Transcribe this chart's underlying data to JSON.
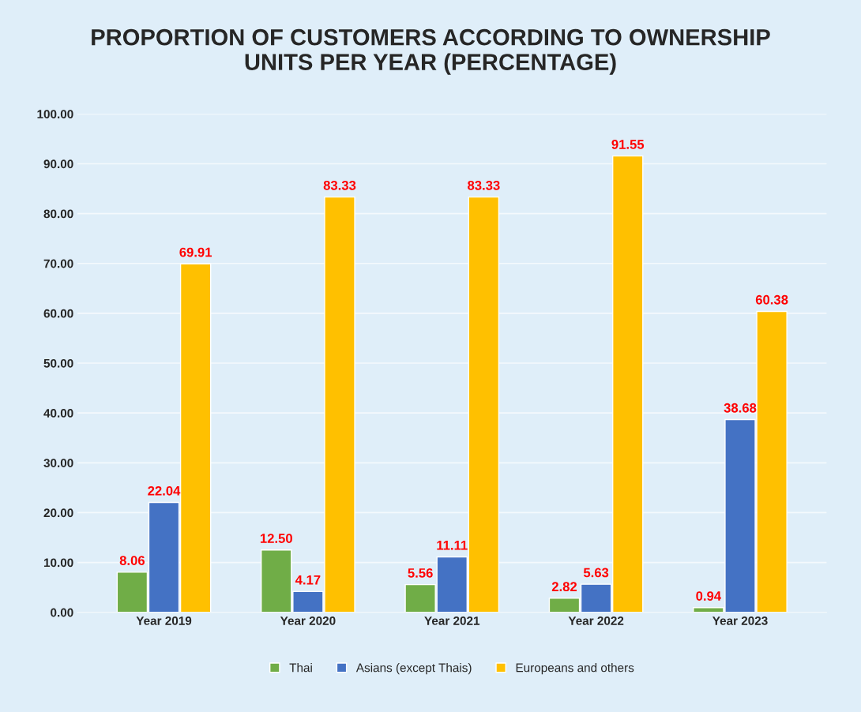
{
  "chart_data": {
    "type": "bar",
    "title": "PROPORTION OF CUSTOMERS ACCORDING TO OWNERSHIP\nUNITS PER YEAR (PERCENTAGE)",
    "categories": [
      "Year 2019",
      "Year 2020",
      "Year 2021",
      "Year 2022",
      "Year 2023"
    ],
    "series": [
      {
        "name": "Thai",
        "color": "#70ad47",
        "values": [
          8.06,
          12.5,
          5.56,
          2.82,
          0.94
        ],
        "value_labels": [
          "8.06",
          "12.50",
          "5.56",
          "2.82",
          "0.94"
        ]
      },
      {
        "name": "Asians (except Thais)",
        "color": "#4472c4",
        "values": [
          22.04,
          4.17,
          11.11,
          5.63,
          38.68
        ],
        "value_labels": [
          "22.04",
          "4.17",
          "11.11",
          "5.63",
          "38.68"
        ]
      },
      {
        "name": "Europeans and others",
        "color": "#ffc000",
        "values": [
          69.91,
          83.33,
          83.33,
          91.55,
          60.38
        ],
        "value_labels": [
          "69.91",
          "83.33",
          "83.33",
          "91.55",
          "60.38"
        ]
      }
    ],
    "ylim": [
      0,
      100
    ],
    "yticks": [
      {
        "value": 0,
        "label": "0.00"
      },
      {
        "value": 10,
        "label": "10.00"
      },
      {
        "value": 20,
        "label": "20.00"
      },
      {
        "value": 30,
        "label": "30.00"
      },
      {
        "value": 40,
        "label": "40.00"
      },
      {
        "value": 50,
        "label": "50.00"
      },
      {
        "value": 60,
        "label": "60.00"
      },
      {
        "value": 70,
        "label": "70.00"
      },
      {
        "value": 80,
        "label": "80.00"
      },
      {
        "value": 90,
        "label": "90.00"
      },
      {
        "value": 100,
        "label": "100.00"
      }
    ],
    "grid": "y",
    "legend": "bottom"
  }
}
